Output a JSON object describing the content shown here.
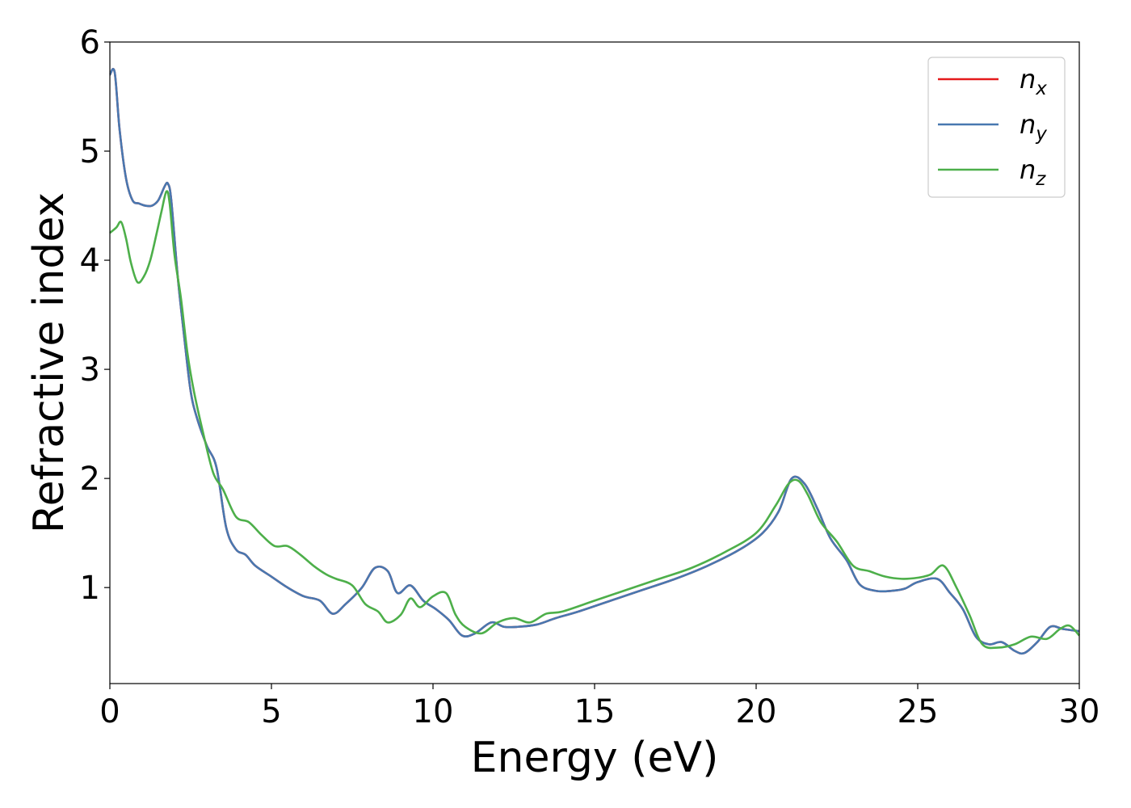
{
  "chart_data": {
    "type": "line",
    "title": "",
    "xlabel": "Energy (eV)",
    "ylabel": "Refractive index",
    "xlim": [
      0,
      30
    ],
    "ylim": [
      0.12,
      6
    ],
    "xticks": [
      0,
      5,
      10,
      15,
      20,
      25,
      30
    ],
    "yticks": [
      1,
      2,
      3,
      4,
      5,
      6
    ],
    "grid": false,
    "legend": "top-right",
    "series": [
      {
        "name": "n_x",
        "label_base": "n",
        "label_sub": "x",
        "color": "#e41a1c",
        "x": [
          0,
          0.15,
          0.3,
          0.5,
          0.7,
          0.9,
          1.1,
          1.3,
          1.5,
          1.7,
          1.8,
          1.9,
          2.1,
          2.3,
          2.5,
          2.7,
          3.0,
          3.3,
          3.6,
          3.9,
          4.2,
          4.5,
          5.0,
          5.5,
          6.0,
          6.5,
          6.9,
          7.3,
          7.8,
          8.2,
          8.6,
          8.9,
          9.3,
          9.7,
          10.1,
          10.5,
          10.9,
          11.3,
          11.8,
          12.2,
          12.6,
          13.2,
          13.8,
          14.5,
          15.5,
          16.5,
          17.5,
          18.5,
          19.5,
          20.2,
          20.7,
          21.1,
          21.5,
          21.9,
          22.3,
          22.8,
          23.2,
          23.7,
          24.2,
          24.6,
          25.0,
          25.6,
          26.0,
          26.4,
          26.8,
          27.2,
          27.6,
          28.0,
          28.3,
          28.7,
          29.1,
          29.5,
          30.0
        ],
        "y": [
          5.7,
          5.72,
          5.2,
          4.75,
          4.55,
          4.52,
          4.5,
          4.5,
          4.55,
          4.68,
          4.7,
          4.55,
          3.85,
          3.3,
          2.8,
          2.55,
          2.3,
          2.1,
          1.55,
          1.35,
          1.3,
          1.2,
          1.1,
          1.0,
          0.92,
          0.88,
          0.76,
          0.85,
          1.0,
          1.18,
          1.15,
          0.95,
          1.02,
          0.88,
          0.8,
          0.7,
          0.56,
          0.58,
          0.68,
          0.64,
          0.64,
          0.66,
          0.72,
          0.78,
          0.88,
          0.98,
          1.08,
          1.2,
          1.35,
          1.5,
          1.7,
          2.0,
          1.95,
          1.72,
          1.45,
          1.25,
          1.03,
          0.97,
          0.97,
          0.99,
          1.05,
          1.08,
          0.95,
          0.8,
          0.55,
          0.48,
          0.5,
          0.42,
          0.4,
          0.5,
          0.64,
          0.62,
          0.6
        ]
      },
      {
        "name": "n_y",
        "label_base": "n",
        "label_sub": "y",
        "color": "#4878b0",
        "x": [
          0,
          0.15,
          0.3,
          0.5,
          0.7,
          0.9,
          1.1,
          1.3,
          1.5,
          1.7,
          1.8,
          1.9,
          2.1,
          2.3,
          2.5,
          2.7,
          3.0,
          3.3,
          3.6,
          3.9,
          4.2,
          4.5,
          5.0,
          5.5,
          6.0,
          6.5,
          6.9,
          7.3,
          7.8,
          8.2,
          8.6,
          8.9,
          9.3,
          9.7,
          10.1,
          10.5,
          10.9,
          11.3,
          11.8,
          12.2,
          12.6,
          13.2,
          13.8,
          14.5,
          15.5,
          16.5,
          17.5,
          18.5,
          19.5,
          20.2,
          20.7,
          21.1,
          21.5,
          21.9,
          22.3,
          22.8,
          23.2,
          23.7,
          24.2,
          24.6,
          25.0,
          25.6,
          26.0,
          26.4,
          26.8,
          27.2,
          27.6,
          28.0,
          28.3,
          28.7,
          29.1,
          29.5,
          30.0
        ],
        "y": [
          5.7,
          5.72,
          5.2,
          4.75,
          4.55,
          4.52,
          4.5,
          4.5,
          4.55,
          4.68,
          4.7,
          4.55,
          3.85,
          3.3,
          2.8,
          2.55,
          2.3,
          2.1,
          1.55,
          1.35,
          1.3,
          1.2,
          1.1,
          1.0,
          0.92,
          0.88,
          0.76,
          0.85,
          1.0,
          1.18,
          1.15,
          0.95,
          1.02,
          0.88,
          0.8,
          0.7,
          0.56,
          0.58,
          0.68,
          0.64,
          0.64,
          0.66,
          0.72,
          0.78,
          0.88,
          0.98,
          1.08,
          1.2,
          1.35,
          1.5,
          1.7,
          2.0,
          1.95,
          1.72,
          1.45,
          1.25,
          1.03,
          0.97,
          0.97,
          0.99,
          1.05,
          1.08,
          0.95,
          0.8,
          0.55,
          0.48,
          0.5,
          0.42,
          0.4,
          0.5,
          0.64,
          0.62,
          0.6
        ]
      },
      {
        "name": "n_z",
        "label_base": "n",
        "label_sub": "z",
        "color": "#4daf4a",
        "x": [
          0,
          0.2,
          0.35,
          0.5,
          0.65,
          0.85,
          1.05,
          1.25,
          1.45,
          1.6,
          1.75,
          1.85,
          2.0,
          2.2,
          2.4,
          2.6,
          2.9,
          3.2,
          3.5,
          3.9,
          4.3,
          4.7,
          5.1,
          5.5,
          5.9,
          6.3,
          6.7,
          7.0,
          7.5,
          7.9,
          8.3,
          8.6,
          9.0,
          9.3,
          9.6,
          10.0,
          10.4,
          10.7,
          11.0,
          11.5,
          12.0,
          12.5,
          13.0,
          13.5,
          14.0,
          15.0,
          16.0,
          17.0,
          18.0,
          19.0,
          20.0,
          20.6,
          21.0,
          21.3,
          21.6,
          22.0,
          22.5,
          23.0,
          23.5,
          24.0,
          24.5,
          25.0,
          25.4,
          25.8,
          26.2,
          26.6,
          27.0,
          27.5,
          28.0,
          28.5,
          29.0,
          29.4,
          29.7,
          30.0
        ],
        "y": [
          4.25,
          4.3,
          4.35,
          4.2,
          3.98,
          3.8,
          3.85,
          4.0,
          4.25,
          4.45,
          4.63,
          4.52,
          4.05,
          3.65,
          3.15,
          2.8,
          2.4,
          2.05,
          1.9,
          1.65,
          1.6,
          1.48,
          1.38,
          1.38,
          1.3,
          1.2,
          1.12,
          1.08,
          1.02,
          0.85,
          0.78,
          0.68,
          0.75,
          0.9,
          0.82,
          0.92,
          0.95,
          0.75,
          0.64,
          0.58,
          0.68,
          0.72,
          0.68,
          0.76,
          0.78,
          0.88,
          0.98,
          1.08,
          1.18,
          1.32,
          1.5,
          1.75,
          1.95,
          1.98,
          1.85,
          1.6,
          1.42,
          1.2,
          1.15,
          1.1,
          1.08,
          1.09,
          1.12,
          1.2,
          1.0,
          0.75,
          0.48,
          0.45,
          0.48,
          0.55,
          0.53,
          0.62,
          0.65,
          0.56
        ]
      }
    ]
  }
}
